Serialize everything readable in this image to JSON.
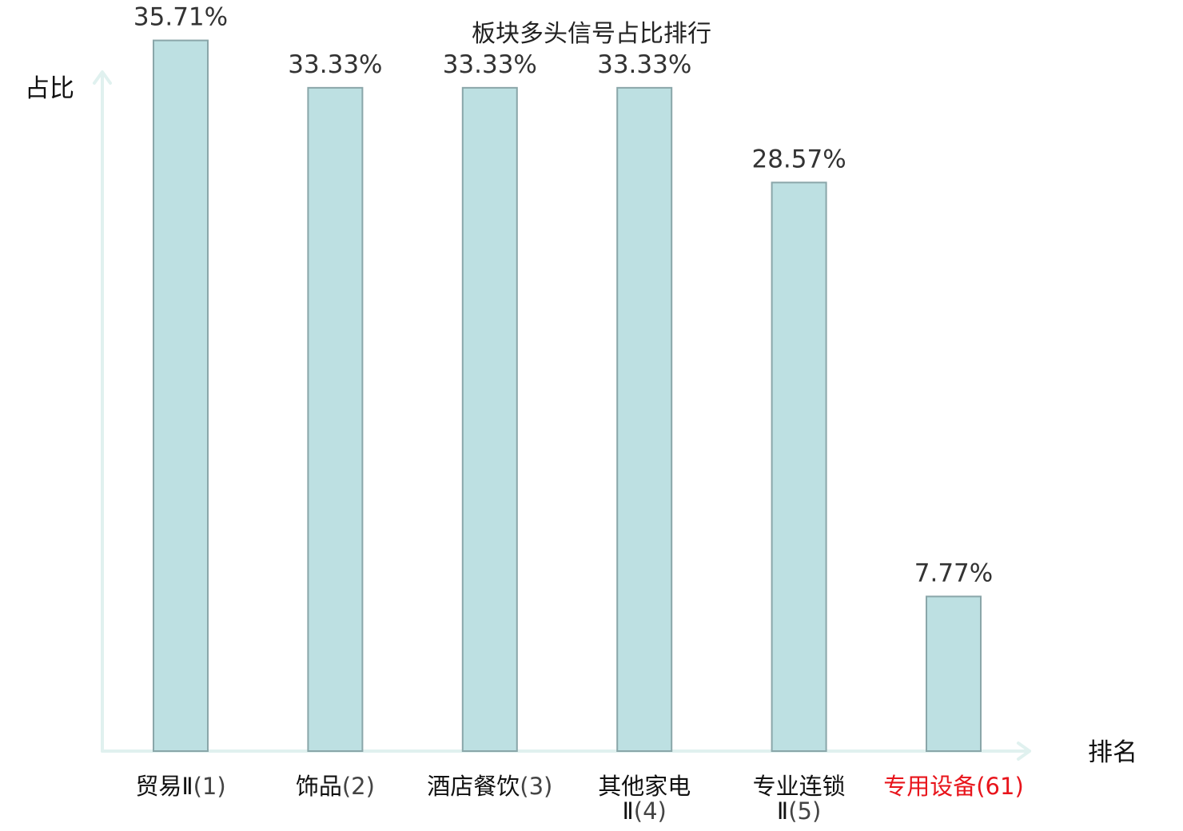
{
  "chart_data": {
    "type": "bar",
    "title": "板块多头信号占比排行",
    "ylabel": "占比",
    "xlabel": "排名",
    "categories": [
      {
        "name": "贸易Ⅱ",
        "rank": "(1)"
      },
      {
        "name": "饰品",
        "rank": "(2)"
      },
      {
        "name": "酒店餐饮",
        "rank": "(3)"
      },
      {
        "name": "其他家电Ⅱ",
        "rank": "(4)"
      },
      {
        "name": "专业连锁Ⅱ",
        "rank": "(5)"
      },
      {
        "name": "专用设备",
        "rank": "(61)"
      }
    ],
    "values": [
      35.71,
      33.33,
      33.33,
      33.33,
      28.57,
      7.77
    ],
    "value_labels": [
      "35.71%",
      "33.33%",
      "33.33%",
      "33.33%",
      "28.57%",
      "7.77%"
    ],
    "ylim": [
      0,
      37.5
    ],
    "highlight_index": 5,
    "grid": false,
    "colors": {
      "bar_fill": "#bde0e2",
      "bar_stroke": "#8aa6a9",
      "axis": "#e0f1ef",
      "highlight": "#e8141b"
    }
  }
}
